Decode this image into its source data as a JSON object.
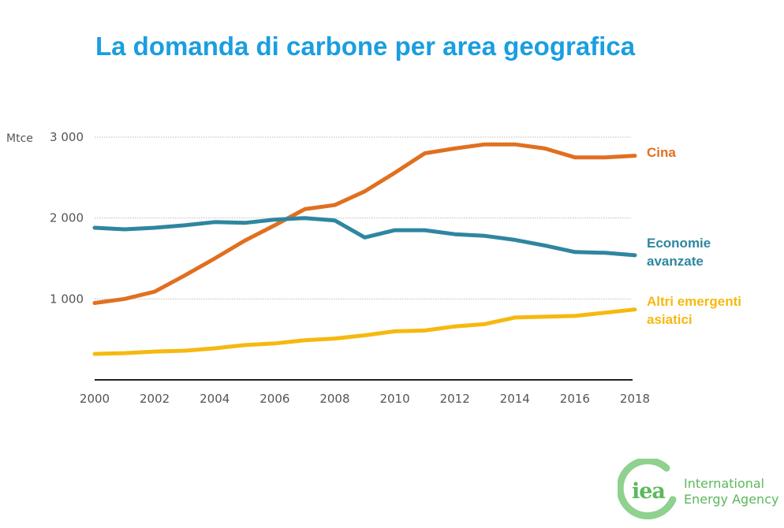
{
  "title": "La domanda di carbone per area geografica",
  "chart_data": {
    "type": "line",
    "title": "La domanda di carbone per area geografica",
    "xlabel": "",
    "ylabel": "Mtce",
    "x": [
      2000,
      2001,
      2002,
      2003,
      2004,
      2005,
      2006,
      2007,
      2008,
      2009,
      2010,
      2011,
      2012,
      2013,
      2014,
      2015,
      2016,
      2017,
      2018
    ],
    "xlim": [
      2000,
      2018
    ],
    "ylim": [
      0,
      3000
    ],
    "x_ticks": [
      "2000",
      "2002",
      "2004",
      "2006",
      "2008",
      "2010",
      "2012",
      "2014",
      "2016",
      "2018"
    ],
    "x_tick_values": [
      2000,
      2002,
      2004,
      2006,
      2008,
      2010,
      2012,
      2014,
      2016,
      2018
    ],
    "y_ticks": [
      "1 000",
      "2 000",
      "3 000"
    ],
    "y_tick_values": [
      1000,
      2000,
      3000
    ],
    "grid": "horizontal dotted",
    "legend": "right (inline labels at line ends)",
    "series": [
      {
        "name": "Cina",
        "color": "#e07020",
        "values": [
          950,
          1000,
          1090,
          1290,
          1500,
          1720,
          1910,
          2110,
          2160,
          2330,
          2560,
          2800,
          2860,
          2910,
          2910,
          2860,
          2750,
          2750,
          2770
        ]
      },
      {
        "name": "Economie avanzate",
        "color": "#2e86a0",
        "values": [
          1880,
          1860,
          1880,
          1910,
          1950,
          1940,
          1980,
          2000,
          1970,
          1760,
          1850,
          1850,
          1800,
          1780,
          1730,
          1660,
          1580,
          1570,
          1540
        ]
      },
      {
        "name": "Altri emergenti asiatici",
        "color": "#f5b90f",
        "values": [
          320,
          330,
          350,
          360,
          390,
          430,
          450,
          490,
          510,
          550,
          600,
          610,
          660,
          690,
          770,
          780,
          790,
          830,
          870
        ]
      }
    ],
    "series_labels": [
      [
        "Cina"
      ],
      [
        "Economie",
        "avanzate"
      ],
      [
        "Altri emergenti",
        "asiatici"
      ]
    ]
  },
  "logo": {
    "mark": "iea",
    "line1": "International",
    "line2": "Energy Agency",
    "color": "#5cb85c"
  }
}
